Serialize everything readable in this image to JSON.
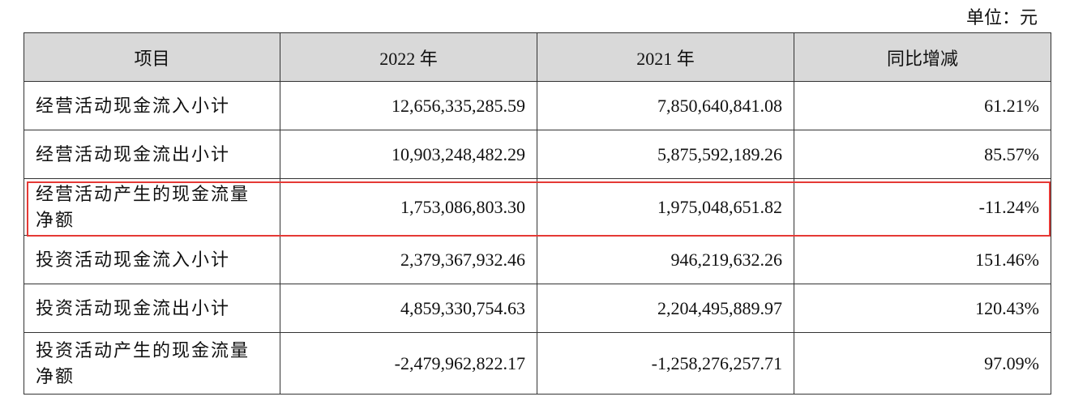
{
  "unit": "单位：元",
  "table": {
    "header": [
      "项目",
      "2022 年",
      "2021 年",
      "同比增减"
    ],
    "rows": [
      [
        "经营活动现金流入小计",
        "12,656,335,285.59",
        "7,850,640,841.08",
        "61.21%"
      ],
      [
        "经营活动现金流出小计",
        "10,903,248,482.29",
        "5,875,592,189.26",
        "85.57%"
      ],
      [
        "经营活动产生的现金流量净额",
        "1,753,086,803.30",
        "1,975,048,651.82",
        "-11.24%"
      ],
      [
        "投资活动现金流入小计",
        "2,379,367,932.46",
        "946,219,632.26",
        "151.46%"
      ],
      [
        "投资活动现金流出小计",
        "4,859,330,754.63",
        "2,204,495,889.97",
        "120.43%"
      ],
      [
        "投资活动产生的现金流量净额",
        "-2,479,962,822.17",
        "-1,258,276,257.71",
        "97.09%"
      ]
    ]
  }
}
